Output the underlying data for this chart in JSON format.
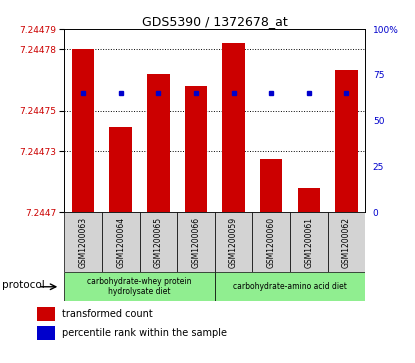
{
  "title": "GDS5390 / 1372678_at",
  "samples": [
    "GSM1200063",
    "GSM1200064",
    "GSM1200065",
    "GSM1200066",
    "GSM1200059",
    "GSM1200060",
    "GSM1200061",
    "GSM1200062"
  ],
  "red_values": [
    7.24478,
    7.244742,
    7.244768,
    7.244762,
    7.244783,
    7.244726,
    7.244712,
    7.24477
  ],
  "blue_percentile": [
    65,
    65,
    65,
    65,
    65,
    65,
    65,
    65
  ],
  "y_min": 7.2447,
  "y_max": 7.24479,
  "y_ticks": [
    7.2447,
    7.24473,
    7.24475,
    7.24478,
    7.24479
  ],
  "y_tick_labels": [
    "7.2447",
    "7.24473",
    "7.24475",
    "7.24478",
    "7.24479"
  ],
  "right_y_ticks": [
    0,
    25,
    50,
    75,
    100
  ],
  "right_y_labels": [
    "0",
    "25",
    "50",
    "75",
    "100%"
  ],
  "protocol_groups": [
    {
      "label": "carbohydrate-whey protein\nhydrolysate diet",
      "start": 0,
      "end": 4,
      "color": "#90ee90"
    },
    {
      "label": "carbohydrate-amino acid diet",
      "start": 4,
      "end": 8,
      "color": "#90ee90"
    }
  ],
  "bar_color": "#cc0000",
  "dot_color": "#0000cc",
  "bar_width": 0.6,
  "tick_label_color_left": "#cc0000",
  "tick_label_color_right": "#0000cc",
  "legend_red_label": "transformed count",
  "legend_blue_label": "percentile rank within the sample",
  "protocol_label": "protocol",
  "sample_bg_color": "#d3d3d3"
}
